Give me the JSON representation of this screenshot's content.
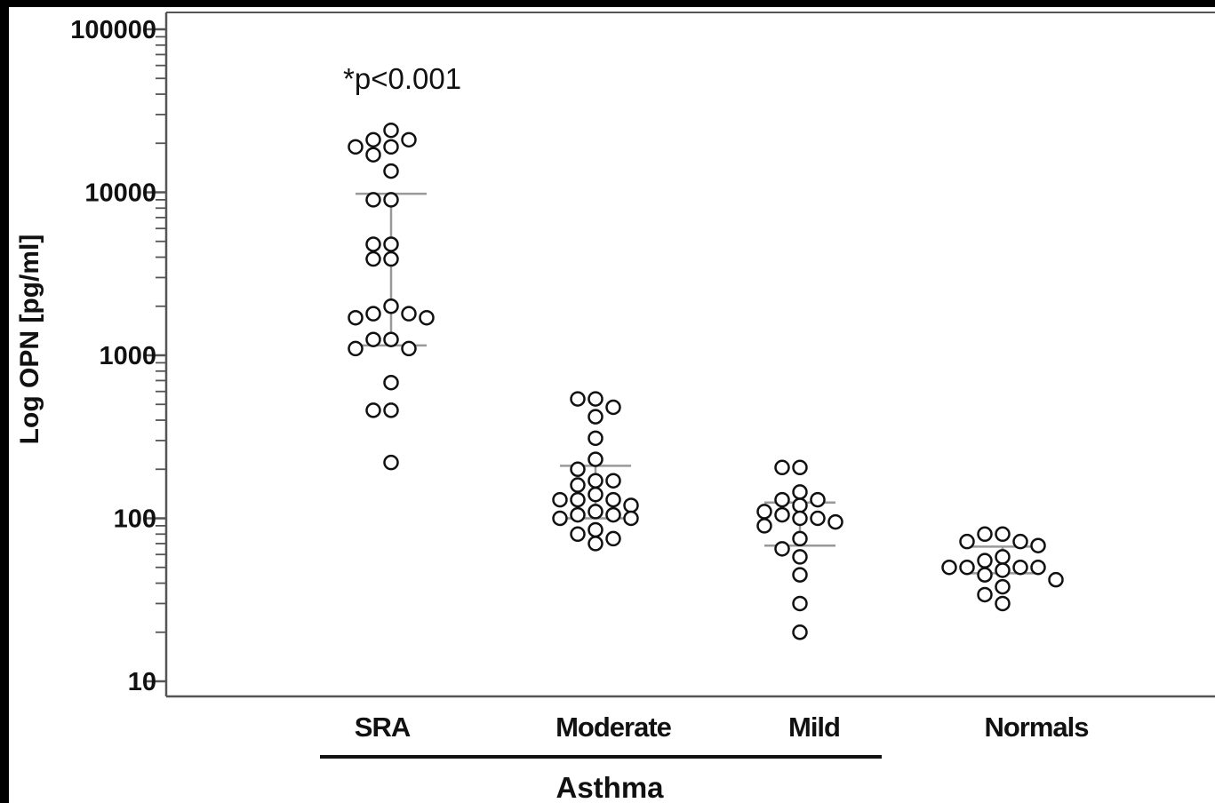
{
  "chart_data": {
    "type": "scatter",
    "ylabel": "Log OPN [pg/ml]",
    "yscale": "log",
    "ylim": [
      10,
      100000
    ],
    "yticks": [
      "100000",
      "10000",
      "1000",
      "100",
      "10"
    ],
    "categories": [
      "SRA",
      "Moderate",
      "Mild",
      "Normals"
    ],
    "group_label": "Asthma",
    "group_members": [
      "SRA",
      "Moderate",
      "Mild"
    ],
    "annotation": "*p<0.001",
    "series": [
      {
        "category": "SRA",
        "values": [
          24000,
          21000,
          21000,
          19000,
          19000,
          17000,
          13500,
          9000,
          9000,
          4800,
          4800,
          3900,
          3900,
          2000,
          1800,
          1800,
          1700,
          1700,
          1250,
          1250,
          1100,
          1100,
          680,
          460,
          460,
          220
        ],
        "range_high": 9800,
        "range_low": 1150
      },
      {
        "category": "Moderate",
        "values": [
          540,
          540,
          480,
          420,
          310,
          230,
          200,
          170,
          170,
          160,
          140,
          130,
          130,
          130,
          120,
          110,
          105,
          105,
          100,
          100,
          85,
          80,
          75,
          70
        ],
        "range_high": 210,
        "range_low": 100
      },
      {
        "category": "Mild",
        "values": [
          205,
          205,
          145,
          130,
          130,
          120,
          110,
          105,
          100,
          100,
          95,
          90,
          75,
          65,
          58,
          45,
          30,
          20
        ],
        "range_high": 125,
        "range_low": 68
      },
      {
        "category": "Normals",
        "values": [
          80,
          80,
          72,
          72,
          68,
          58,
          55,
          50,
          50,
          50,
          50,
          48,
          45,
          42,
          38,
          34,
          30
        ],
        "range_high": 67,
        "range_low": 46
      }
    ],
    "colors": {
      "marker_stroke": "#111111",
      "marker_fill": "#ffffff",
      "range_line": "#999999",
      "axis": "#555555"
    },
    "grid": false
  }
}
